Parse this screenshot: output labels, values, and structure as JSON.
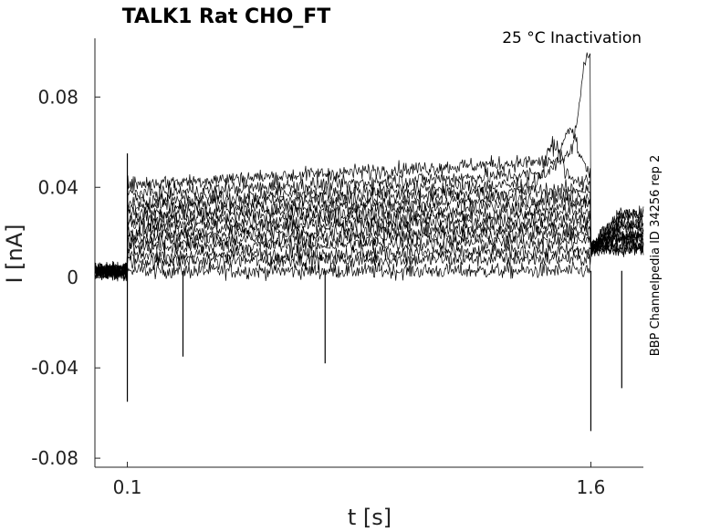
{
  "chart_data": {
    "type": "line",
    "title": "TALK1  Rat  CHO_FT",
    "annotation": "25 °C  Inactivation",
    "side_note": "BBP Channelpedia ID 34256 rep 2",
    "xlabel": "t [s]",
    "ylabel": "I [nA]",
    "xlim": [
      -0.005,
      1.77
    ],
    "ylim": [
      -0.084,
      0.106
    ],
    "xticks": [
      {
        "value": 0.1,
        "label": "0.1"
      },
      {
        "value": 1.6,
        "label": "1.6"
      }
    ],
    "yticks": [
      {
        "value": 0.08,
        "label": "0.08"
      },
      {
        "value": 0.04,
        "label": "0.04"
      },
      {
        "value": 0,
        "label": "0"
      },
      {
        "value": -0.04,
        "label": "-0.04"
      },
      {
        "value": -0.08,
        "label": "-0.08"
      }
    ],
    "grid": false,
    "legend": "none",
    "line_color": "#000000",
    "series_profile": {
      "n_traces": 14,
      "baseline": 0.003,
      "step_on": 0.1,
      "step_off": 1.6,
      "post_step_rise_to": 1.7,
      "trace_levels_during_step": [
        0.0,
        0.005,
        0.008,
        0.012,
        0.015,
        0.018,
        0.021,
        0.024,
        0.027,
        0.03,
        0.033,
        0.036,
        0.04,
        0.045
      ],
      "transient_peaks": [
        {
          "t": 1.48,
          "i": 0.062
        },
        {
          "t": 1.53,
          "i": 0.065
        },
        {
          "t": 1.59,
          "i": 0.091
        }
      ],
      "downward_spikes": [
        {
          "t": 0.1,
          "i": -0.055
        },
        {
          "t": 0.28,
          "i": -0.035
        },
        {
          "t": 0.74,
          "i": -0.038
        },
        {
          "t": 1.6,
          "i": -0.068
        },
        {
          "t": 1.7,
          "i": -0.049
        }
      ],
      "upward_spikes": [
        {
          "t": 0.1,
          "i": 0.055
        }
      ]
    }
  }
}
